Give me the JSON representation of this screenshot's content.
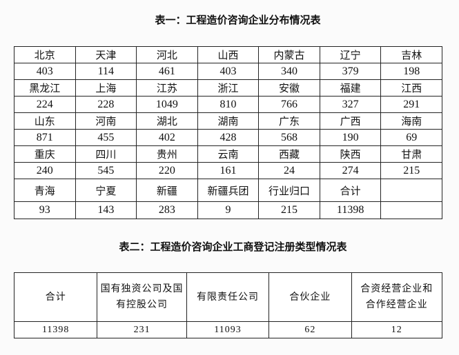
{
  "table1": {
    "title": "表一：工程造价咨询企业分布情况表",
    "rows": [
      {
        "names": [
          "北京",
          "天津",
          "河北",
          "山西",
          "内蒙古",
          "辽宁",
          "吉林"
        ],
        "values": [
          "403",
          "114",
          "461",
          "403",
          "340",
          "379",
          "198"
        ]
      },
      {
        "names": [
          "黑龙江",
          "上海",
          "江苏",
          "浙江",
          "安徽",
          "福建",
          "江西"
        ],
        "values": [
          "224",
          "228",
          "1049",
          "810",
          "766",
          "327",
          "291"
        ]
      },
      {
        "names": [
          "山东",
          "河南",
          "湖北",
          "湖南",
          "广东",
          "广西",
          "海南"
        ],
        "values": [
          "871",
          "455",
          "402",
          "428",
          "568",
          "190",
          "69"
        ]
      },
      {
        "names": [
          "重庆",
          "四川",
          "贵州",
          "云南",
          "西藏",
          "陕西",
          "甘肃"
        ],
        "values": [
          "240",
          "545",
          "220",
          "161",
          "24",
          "274",
          "215"
        ]
      },
      {
        "names": [
          "青海",
          "宁夏",
          "新疆",
          "新疆兵团",
          "行业归口",
          "合计",
          ""
        ],
        "values": [
          "93",
          "143",
          "283",
          "9",
          "215",
          "11398",
          ""
        ]
      }
    ]
  },
  "table2": {
    "title": "表二：工程造价咨询企业工商登记注册类型情况表",
    "headers": [
      "合计",
      "国有独资公司及国有控股公司",
      "有限责任公司",
      "合伙企业",
      "合资经营企业和合作经营企业"
    ],
    "values": [
      "11398",
      "231",
      "11093",
      "62",
      "12"
    ]
  }
}
